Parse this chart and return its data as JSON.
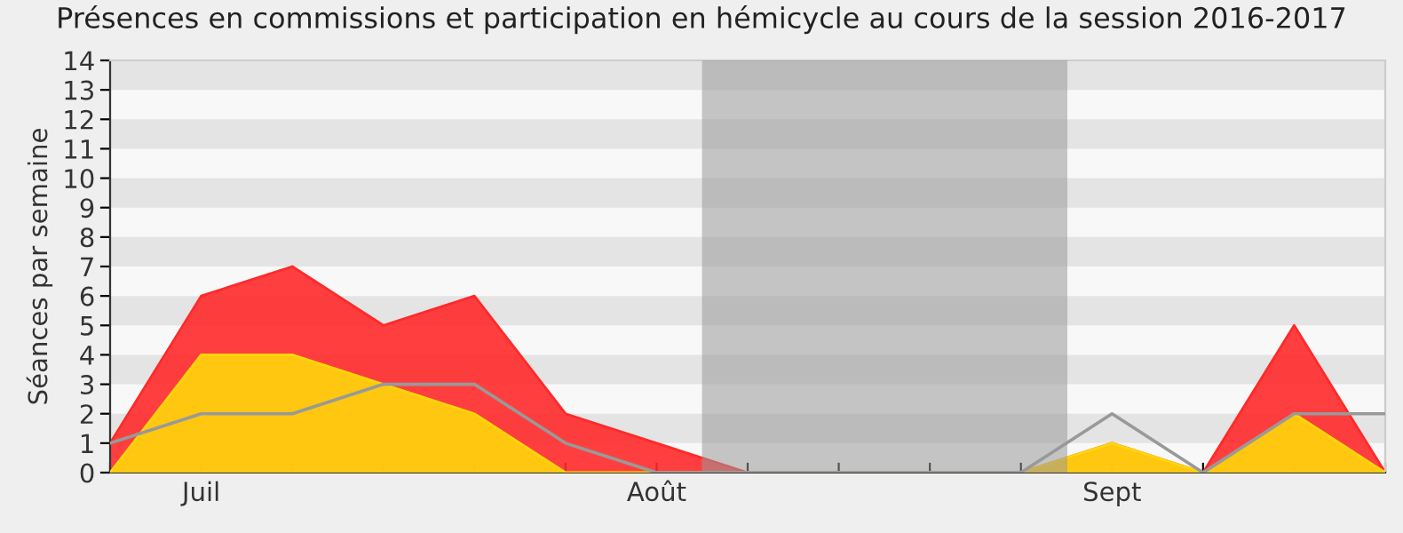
{
  "chart_data": {
    "type": "area",
    "title": "Présences en commissions et participation en hémicycle au cours de la session 2016-2017",
    "ylabel": "Séances par semaine",
    "categories": [
      null,
      "Juil",
      null,
      null,
      null,
      null,
      "Août",
      null,
      null,
      null,
      null,
      "Sept",
      null,
      null,
      null
    ],
    "series": [
      {
        "color": "#ff2a2a",
        "values": [
          1,
          6,
          7,
          5,
          6,
          2,
          1,
          0,
          0,
          0,
          0,
          1,
          0,
          5,
          0
        ]
      },
      {
        "color": "#ffd60a",
        "values": [
          0,
          4,
          4,
          3,
          2,
          0,
          0,
          0,
          0,
          0,
          0,
          1,
          0,
          2,
          0
        ]
      },
      {
        "type": "line",
        "color": "#999999",
        "values": [
          1,
          2,
          2,
          3,
          3,
          1,
          0,
          0,
          0,
          0,
          0,
          2,
          0,
          2,
          2
        ]
      }
    ],
    "ylim": [
      0,
      14
    ],
    "yticks": [
      0,
      1,
      2,
      3,
      4,
      5,
      6,
      7,
      8,
      9,
      10,
      11,
      12,
      13,
      14
    ],
    "legend": false
  }
}
